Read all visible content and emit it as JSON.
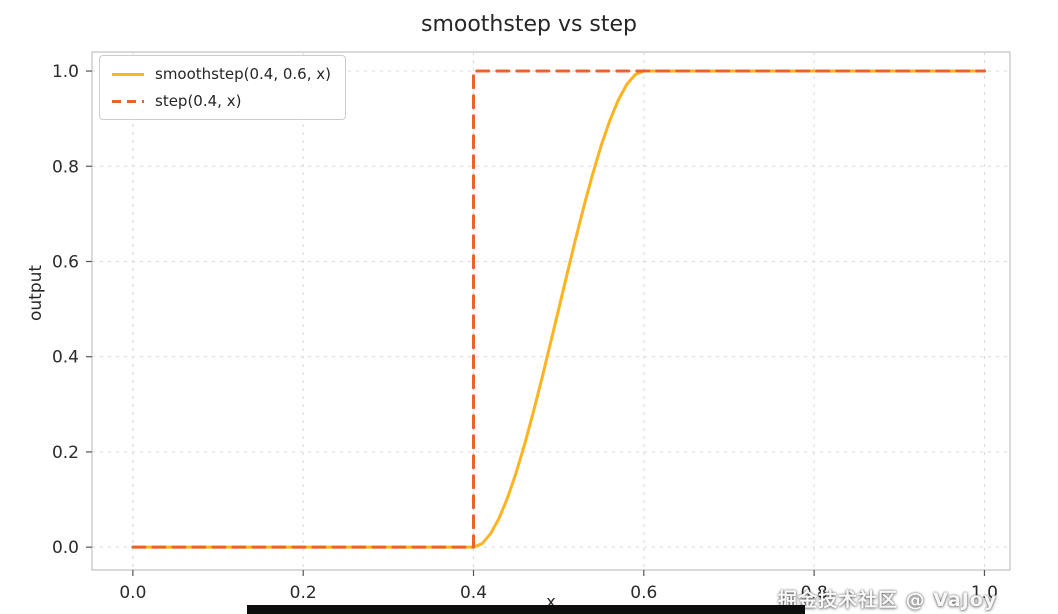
{
  "page": {
    "background": "#ffffff"
  },
  "watermark": "掘金技术社区 @ VaJoy",
  "chart_data": {
    "type": "line",
    "title": "smoothstep vs step",
    "xlabel": "x",
    "ylabel": "output",
    "xlim": [
      -0.048,
      1.03
    ],
    "ylim": [
      -0.048,
      1.04
    ],
    "xticks": [
      0.0,
      0.2,
      0.4,
      0.6,
      0.8,
      1.0
    ],
    "yticks": [
      0.0,
      0.2,
      0.4,
      0.6,
      0.8,
      1.0
    ],
    "xtick_labels": [
      "0.0",
      "0.2",
      "0.4",
      "0.6",
      "0.8",
      "1.0"
    ],
    "ytick_labels": [
      "0.0",
      "0.2",
      "0.4",
      "0.6",
      "0.8",
      "1.0"
    ],
    "grid": true,
    "grid_color": "#d9d9d9",
    "spine_color": "#c2c2c2",
    "tick_color": "#555555",
    "legend_position": "upper left",
    "series": [
      {
        "name": "smoothstep(0.4, 0.6, x)",
        "color": "#FFB321",
        "style": "solid",
        "width": 3,
        "points": [
          [
            0.0,
            0.0
          ],
          [
            0.4,
            0.0
          ],
          [
            0.41,
            0.00725
          ],
          [
            0.42,
            0.028
          ],
          [
            0.43,
            0.06075
          ],
          [
            0.44,
            0.104
          ],
          [
            0.45,
            0.15625
          ],
          [
            0.46,
            0.216
          ],
          [
            0.47,
            0.28175
          ],
          [
            0.48,
            0.352
          ],
          [
            0.49,
            0.42525
          ],
          [
            0.5,
            0.5
          ],
          [
            0.51,
            0.57475
          ],
          [
            0.52,
            0.648
          ],
          [
            0.53,
            0.71825
          ],
          [
            0.54,
            0.784
          ],
          [
            0.55,
            0.84375
          ],
          [
            0.56,
            0.896
          ],
          [
            0.57,
            0.93925
          ],
          [
            0.58,
            0.972
          ],
          [
            0.59,
            0.99275
          ],
          [
            0.6,
            1.0
          ],
          [
            1.0,
            1.0
          ]
        ]
      },
      {
        "name": "step(0.4, x)",
        "color": "#E8642C",
        "style": "dashed",
        "width": 3,
        "points": [
          [
            0.0,
            0.0
          ],
          [
            0.4,
            0.0
          ],
          [
            0.4,
            1.0
          ],
          [
            1.0,
            1.0
          ]
        ]
      }
    ]
  }
}
